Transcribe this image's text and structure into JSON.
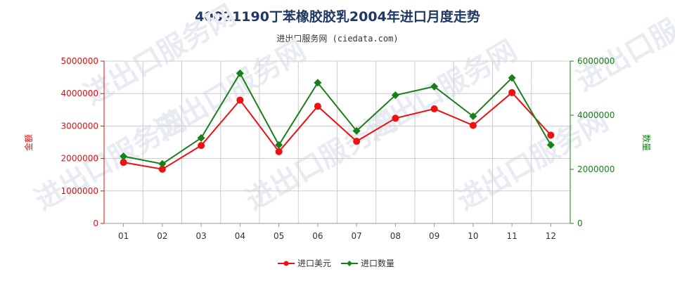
{
  "title": "40021190丁苯橡胶胶乳2004年进口月度走势",
  "subtitle": "进出口服务网 (ciedata.com)",
  "watermark": "进出口服务网",
  "chart_data": {
    "type": "line",
    "categories": [
      "01",
      "02",
      "03",
      "04",
      "05",
      "06",
      "07",
      "08",
      "09",
      "10",
      "11",
      "12"
    ],
    "series": [
      {
        "name": "进口美元",
        "axis": "left",
        "color": "#ee1111",
        "marker": "circle",
        "values": [
          1880000,
          1670000,
          2400000,
          3800000,
          2210000,
          3610000,
          2530000,
          3240000,
          3530000,
          3020000,
          4030000,
          2720000
        ]
      },
      {
        "name": "进口数量",
        "axis": "right",
        "color": "#1a7f1a",
        "marker": "diamond",
        "values": [
          2480000,
          2200000,
          3160000,
          5550000,
          2900000,
          5200000,
          3420000,
          4740000,
          5060000,
          3960000,
          5380000,
          2900000
        ]
      }
    ],
    "y_left": {
      "label": "金额",
      "color": "#dd1111",
      "ylim": [
        0,
        5000000
      ],
      "ticks": [
        "0",
        "1000000",
        "2000000",
        "3000000",
        "4000000",
        "5000000"
      ]
    },
    "y_right": {
      "label": "数量",
      "color": "#1a7f1a",
      "ylim": [
        0,
        6000000
      ],
      "ticks": [
        "0",
        "2000000",
        "4000000",
        "6000000"
      ]
    },
    "grid": true,
    "legend_position": "bottom-center"
  }
}
